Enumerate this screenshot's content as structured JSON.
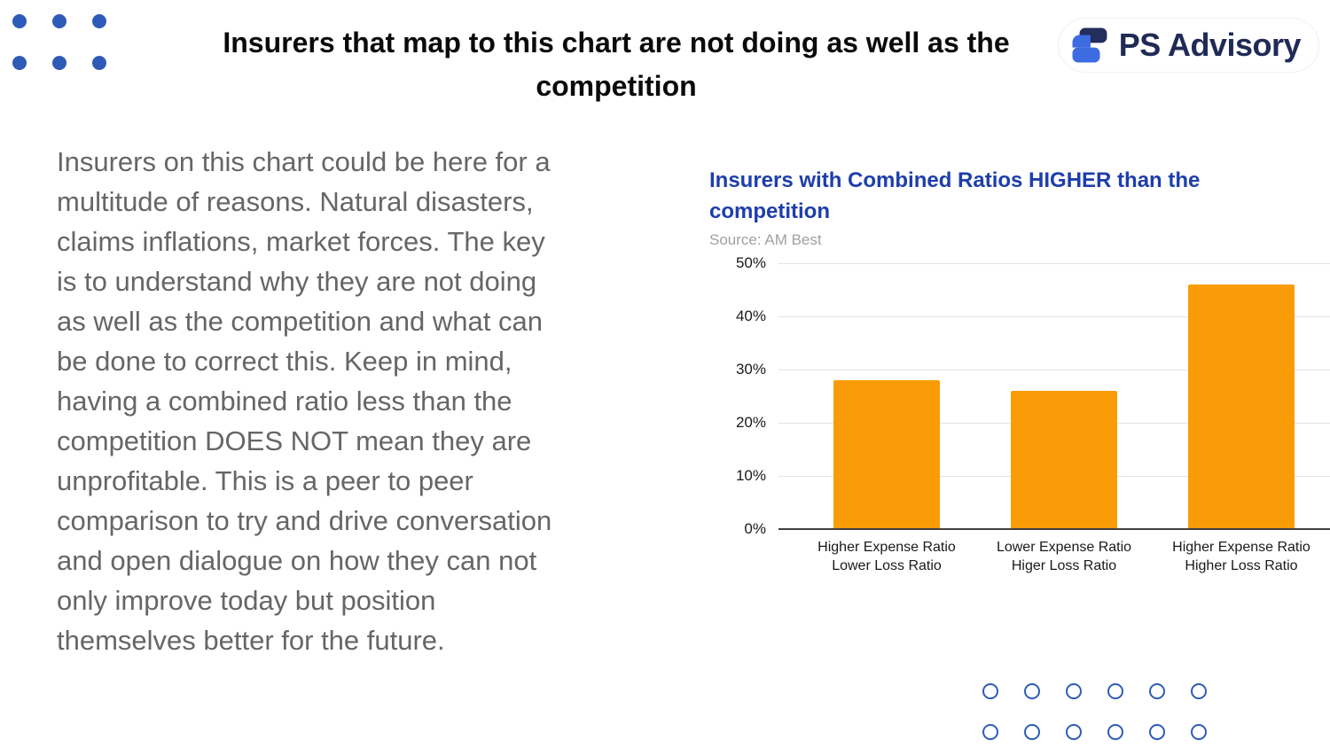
{
  "header": {
    "title_lines": [
      "Insurers that map to this chart are not doing as well as the",
      "competition"
    ],
    "logo_text": "PS Advisory"
  },
  "body": {
    "paragraph_lines": [
      "Insurers on this chart could be here for a",
      "multitude of reasons.  Natural disasters,",
      "claims inflations, market forces.  The key",
      "is to understand why they are not doing",
      "as well as the competition and what can",
      "be done to correct this.  Keep in mind,",
      "having a combined ratio less than the",
      "competition DOES NOT mean they are",
      "unprofitable.  This is a peer to peer",
      "comparison to try and drive conversation",
      "and open dialogue on how they can not",
      "only improve today but position",
      "themselves better for the future."
    ]
  },
  "chart_data": {
    "type": "bar",
    "title": "Insurers with Combined Ratios HIGHER than the competition",
    "title_lines": [
      "Insurers with Combined Ratios HIGHER than the",
      "competition"
    ],
    "source": "Source: AM Best",
    "categories": [
      [
        "Higher Expense Ratio",
        "Lower Loss Ratio"
      ],
      [
        "Lower Expense Ratio",
        "Higer Loss Ratio"
      ],
      [
        "Higher Expense Ratio",
        "Higher Loss Ratio"
      ]
    ],
    "values": [
      28,
      26,
      46
    ],
    "unit": "%",
    "y_ticks": [
      "50%",
      "40%",
      "30%",
      "20%",
      "10%",
      "0%"
    ],
    "ylim": [
      0,
      50
    ],
    "grid": true,
    "legend": "none",
    "bar_color": "#F99C07"
  },
  "decor": {
    "top_left_dots": {
      "rows": 2,
      "cols": 3,
      "color": "#2F5BB8"
    },
    "bottom_right_rings": {
      "rows": 2,
      "cols": 6,
      "color": "#2E5CB8"
    }
  },
  "colors": {
    "chart_title_blue": "#1E3EAC",
    "body_text_gray": "#666666",
    "bar_orange": "#F99C07",
    "logo_navy": "#1F2A56",
    "logo_blue": "#3D6BE1"
  }
}
